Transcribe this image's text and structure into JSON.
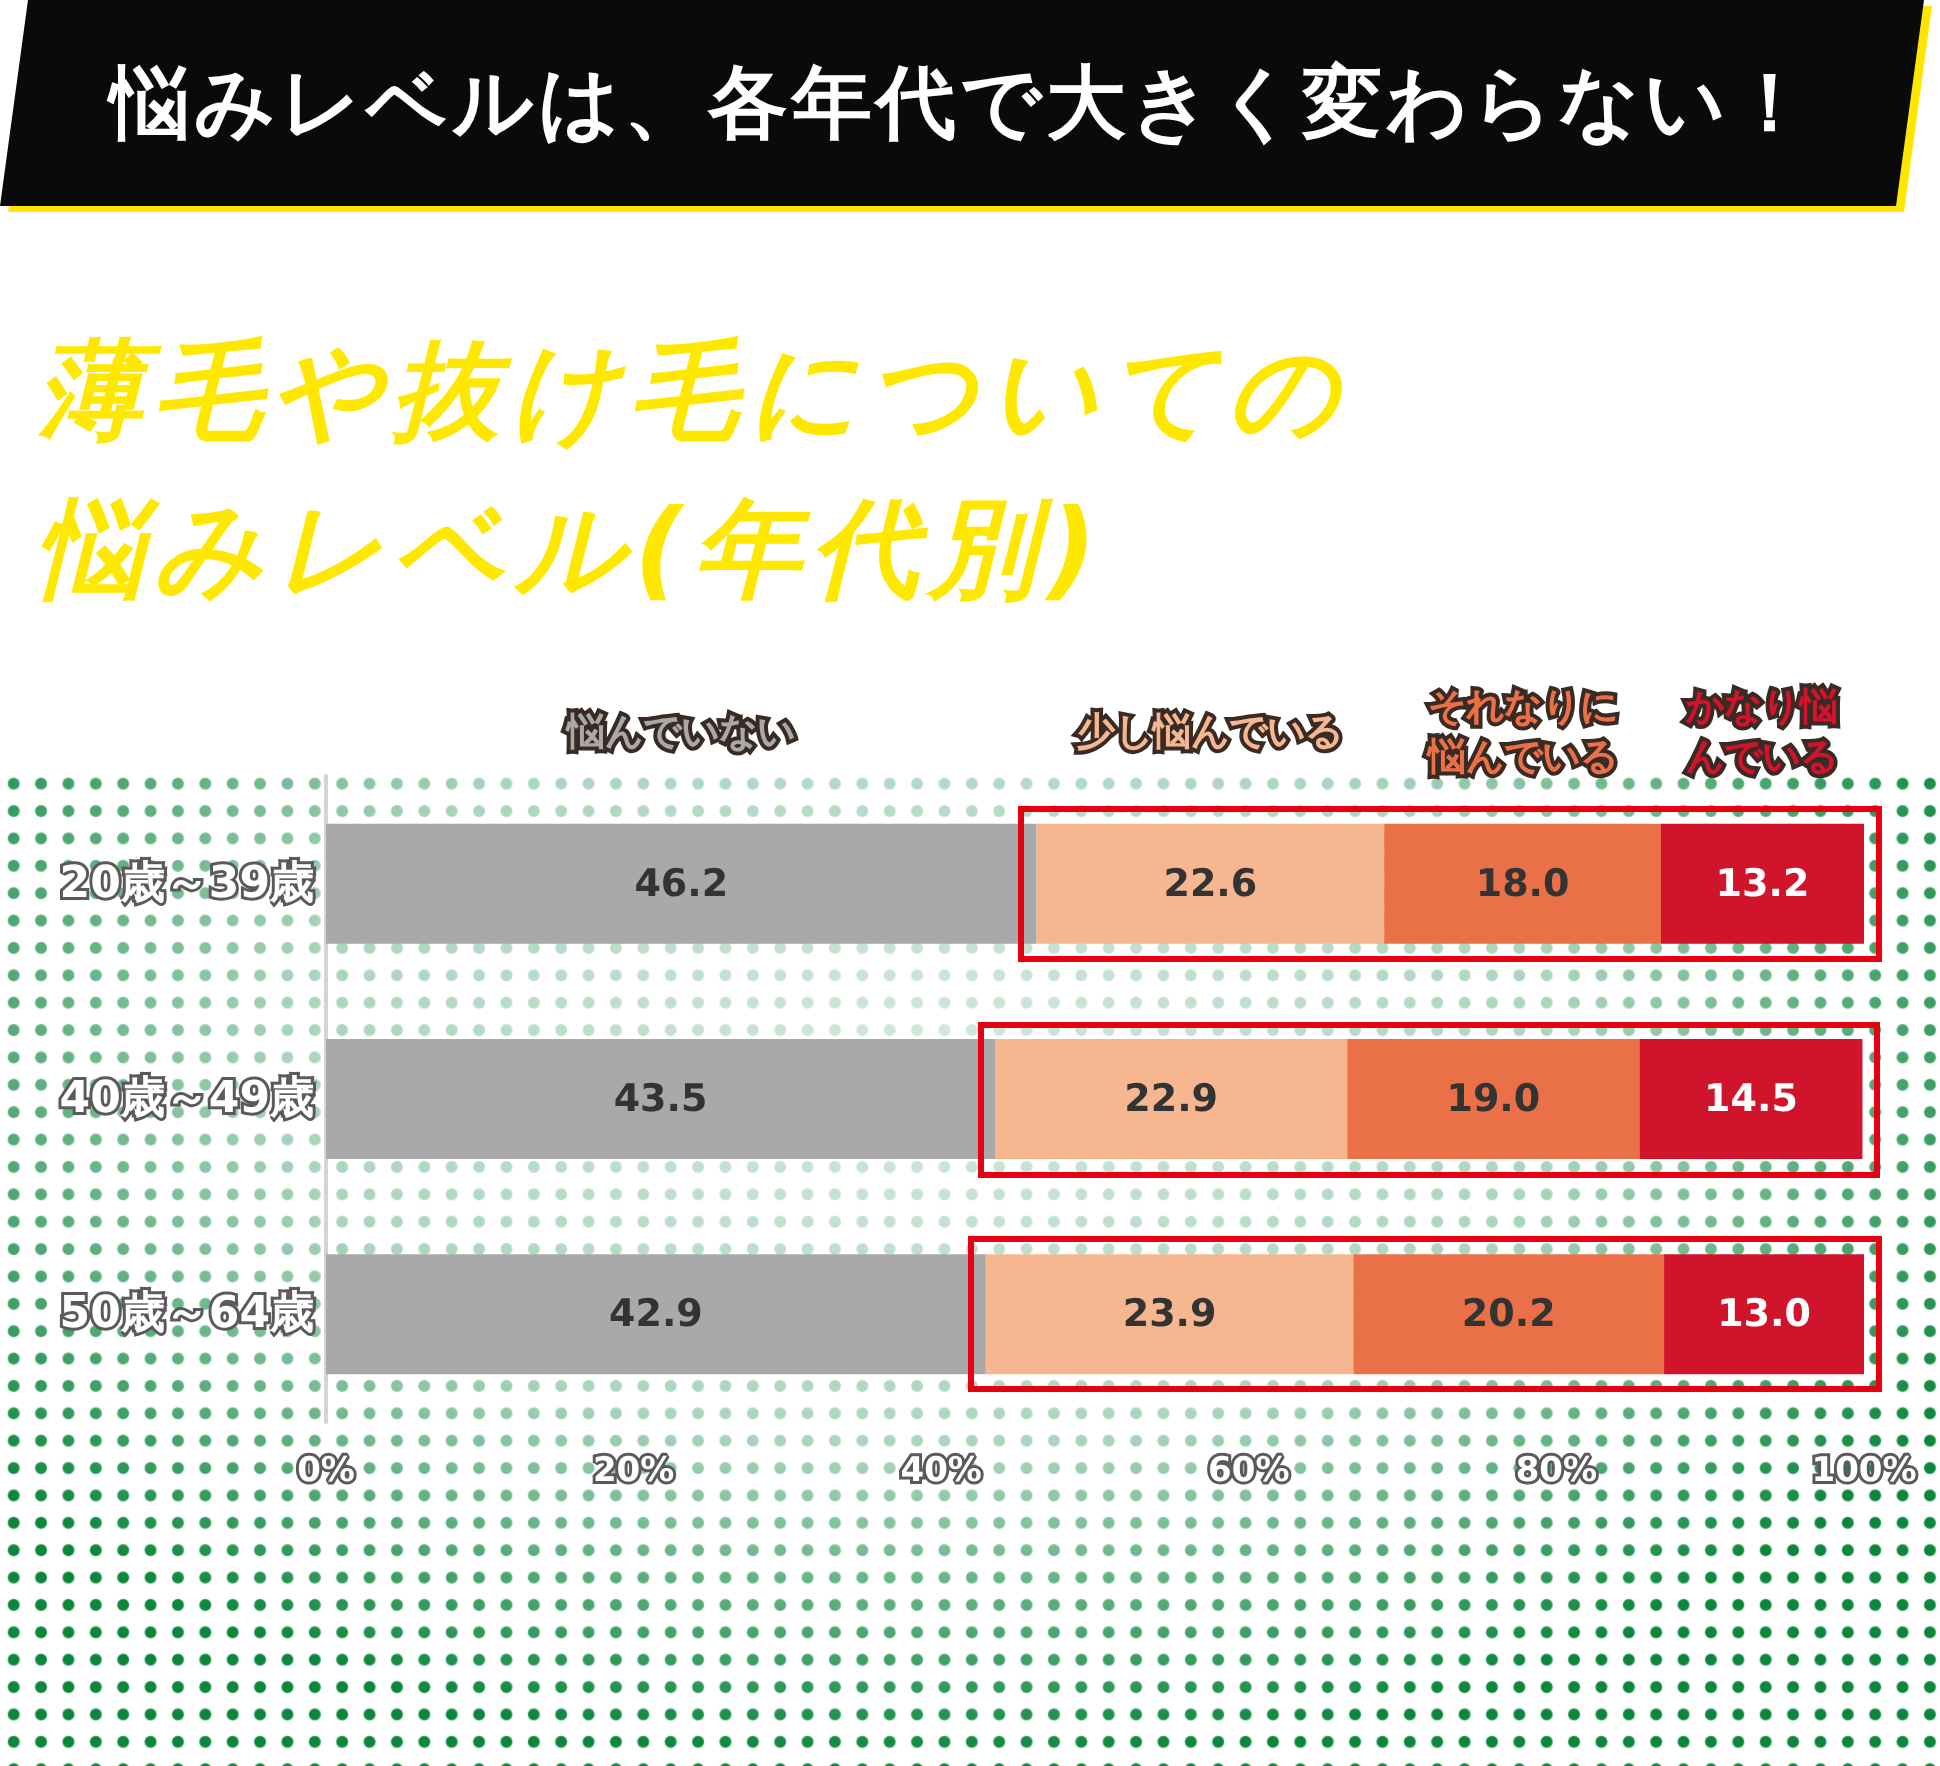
{
  "chart_data": {
    "type": "bar",
    "orientation": "horizontal",
    "stacked": true,
    "title": "悩みレベルは、各年代で大きく変わらない！",
    "subtitle": "薄毛や抜け毛についての悩みレベル(年代別)",
    "categories": [
      "20歳～39歳",
      "40歳～49歳",
      "50歳～64歳"
    ],
    "series": [
      {
        "name": "悩んでいない",
        "color": "#a9a9a9",
        "values": [
          46.2,
          43.5,
          42.9
        ],
        "value_labels": [
          "46.2",
          "43.5",
          "42.9"
        ]
      },
      {
        "name": "少し悩んでいる",
        "color": "#f5b690",
        "values": [
          22.6,
          22.9,
          23.9
        ],
        "value_labels": [
          "22.6",
          "22.9",
          "23.9"
        ]
      },
      {
        "name": "それなりに悩んでいる",
        "color": "#ea7048",
        "values": [
          18.0,
          19.0,
          20.2
        ],
        "value_labels": [
          "18.0",
          "19.0",
          "20.2"
        ]
      },
      {
        "name": "かなり悩んでいる",
        "color": "#d0142c",
        "values": [
          13.2,
          14.5,
          13.0
        ],
        "value_labels": [
          "13.2",
          "14.5",
          "13.0"
        ]
      }
    ],
    "xlim": [
      0,
      100
    ],
    "xticks": [
      {
        "value": 0,
        "label": "0%"
      },
      {
        "value": 20,
        "label": "20%"
      },
      {
        "value": 40,
        "label": "40%"
      },
      {
        "value": 60,
        "label": "60%"
      },
      {
        "value": 80,
        "label": "80%"
      },
      {
        "value": 100,
        "label": "100%"
      }
    ]
  }
}
